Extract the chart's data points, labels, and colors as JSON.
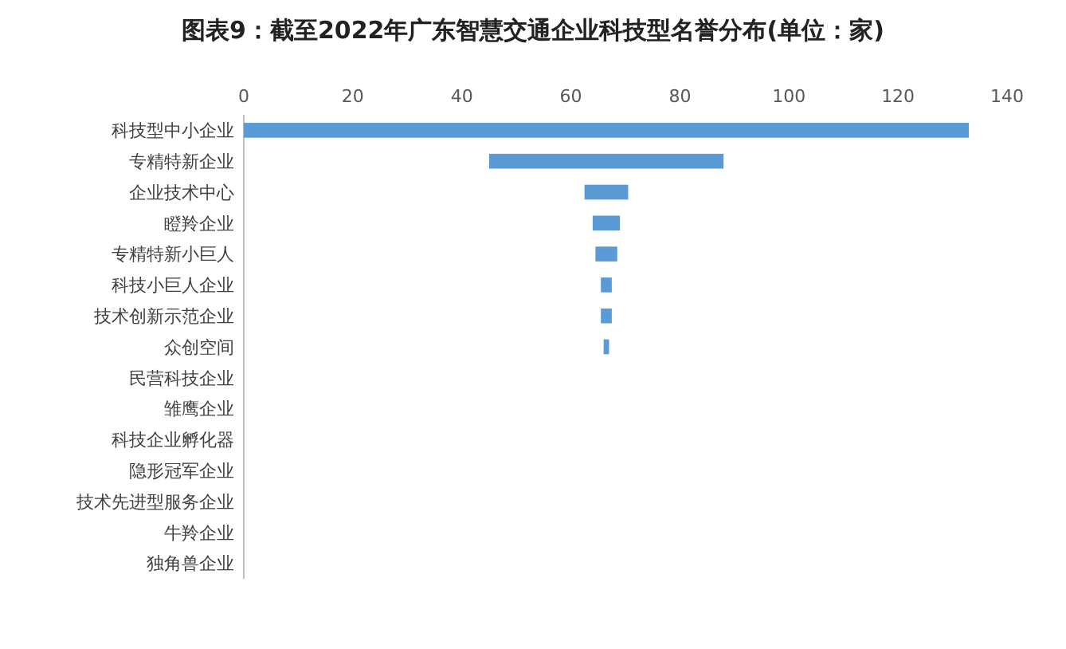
{
  "chart_data": {
    "type": "bar",
    "orientation": "horizontal",
    "title": "图表9：截至2022年广东智慧交通企业科技型名誉分布(单位：家)",
    "categories": [
      "科技型中小企业",
      "专精特新企业",
      "企业技术中心",
      "瞪羚企业",
      "专精特新小巨人",
      "科技小巨人企业",
      "技术创新示范企业",
      "众创空间",
      "民营科技企业",
      "雏鹰企业",
      "科技企业孵化器",
      "隐形冠军企业",
      "技术先进型服务企业",
      "牛羚企业",
      "独角兽企业"
    ],
    "values": [
      133,
      43,
      8,
      5,
      4,
      2,
      2,
      1,
      0,
      0,
      0,
      0,
      0,
      0,
      0
    ],
    "base": [
      0,
      45,
      62.5,
      64,
      64.5,
      65.5,
      65.5,
      66,
      null,
      null,
      null,
      null,
      null,
      null,
      null
    ],
    "color": "#5b9bd5",
    "xlim": [
      0,
      140
    ],
    "xticks": [
      0,
      20,
      40,
      60,
      80,
      100,
      120,
      140
    ],
    "grid": false
  }
}
